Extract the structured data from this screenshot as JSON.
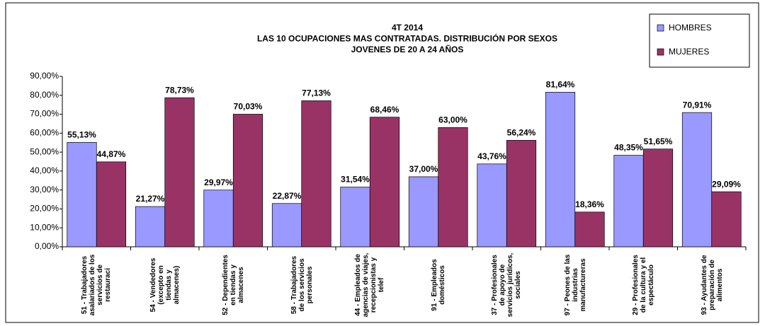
{
  "chart_data": {
    "type": "bar",
    "title": [
      "4T 2014",
      "LAS 10 OCUPACIONES MAS CONTRATADAS. DISTRIBUCIÓN POR SEXOS",
      "JOVENES DE 20 A 24 AÑOS"
    ],
    "categories": [
      "51 - Trabajadores asalariados de los servicios de restauraci",
      "54 - Vendedores (excepto en tiendas y almacenes)",
      "52 - Dependientes en tiendas y almacenes",
      "58 - Trabajadores de los servicios personales",
      "44 - Empleados de agencias de viajes, recepcionistas y telef",
      "91 - Empleados domésticos",
      "37 - Profesionales de apoyo de servicios jurídicos, sociales",
      "97 - Peones de las industrias manufactureras",
      "29 - Profesionales de la cultura y el espectáculo",
      "93 - Ayudantes de preparación de alimentos"
    ],
    "series": [
      {
        "name": "HOMBRES",
        "color": "#9999ff",
        "values": [
          55.13,
          21.27,
          29.97,
          22.87,
          31.54,
          37.0,
          43.76,
          81.64,
          48.35,
          70.91
        ],
        "value_labels": [
          "55,13%",
          "21,27%",
          "29,97%",
          "22,87%",
          "31,54%",
          "37,00%",
          "43,76%",
          "81,64%",
          "48,35%",
          "70,91%"
        ]
      },
      {
        "name": "MUJERES",
        "color": "#993366",
        "values": [
          44.87,
          78.73,
          70.03,
          77.13,
          68.46,
          63.0,
          56.24,
          18.36,
          51.65,
          29.09
        ],
        "value_labels": [
          "44,87%",
          "78,73%",
          "70,03%",
          "77,13%",
          "68,46%",
          "63,00%",
          "56,24%",
          "18,36%",
          "51,65%",
          "29,09%"
        ]
      }
    ],
    "ylim": [
      0,
      90
    ],
    "yticks": [
      {
        "value": 0,
        "label": "0,00%"
      },
      {
        "value": 10,
        "label": "10,00%"
      },
      {
        "value": 20,
        "label": "20,00%"
      },
      {
        "value": 30,
        "label": "30,00%"
      },
      {
        "value": 40,
        "label": "40,00%"
      },
      {
        "value": 50,
        "label": "50,00%"
      },
      {
        "value": 60,
        "label": "60,00%"
      },
      {
        "value": 70,
        "label": "70,00%"
      },
      {
        "value": 80,
        "label": "80,00%"
      },
      {
        "value": 90,
        "label": "90,00%"
      }
    ],
    "legend": "top-right"
  }
}
